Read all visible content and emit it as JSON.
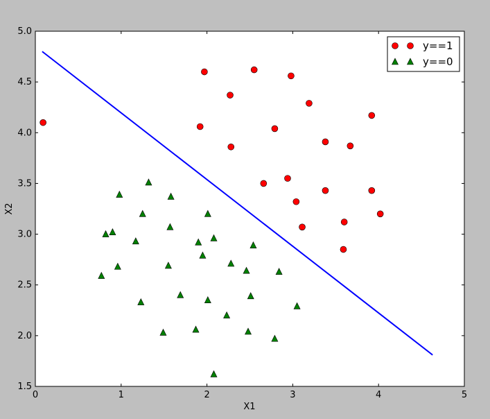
{
  "chart_data": {
    "type": "scatter",
    "xlabel": "X1",
    "ylabel": "X2",
    "xlim": [
      0,
      5
    ],
    "ylim": [
      1.5,
      5.0
    ],
    "xticks": [
      "0",
      "1",
      "2",
      "3",
      "4",
      "5"
    ],
    "yticks": [
      "1.5",
      "2.0",
      "2.5",
      "3.0",
      "3.5",
      "4.0",
      "4.5",
      "5.0"
    ],
    "grid": false,
    "legend_position": "top-right",
    "series": [
      {
        "name": "y==1",
        "marker": "circle",
        "color": "#ff0000",
        "points": [
          [
            0.09,
            4.1
          ],
          [
            1.97,
            4.6
          ],
          [
            2.55,
            4.62
          ],
          [
            2.98,
            4.56
          ],
          [
            2.27,
            4.37
          ],
          [
            3.19,
            4.29
          ],
          [
            1.92,
            4.06
          ],
          [
            2.79,
            4.04
          ],
          [
            3.92,
            4.17
          ],
          [
            3.38,
            3.91
          ],
          [
            3.67,
            3.87
          ],
          [
            2.28,
            3.86
          ],
          [
            2.66,
            3.5
          ],
          [
            2.94,
            3.55
          ],
          [
            3.38,
            3.43
          ],
          [
            3.92,
            3.43
          ],
          [
            3.04,
            3.32
          ],
          [
            4.02,
            3.2
          ],
          [
            3.6,
            3.12
          ],
          [
            3.11,
            3.07
          ],
          [
            3.59,
            2.85
          ]
        ]
      },
      {
        "name": "y==0",
        "marker": "triangle",
        "color": "#008000",
        "points": [
          [
            1.32,
            3.51
          ],
          [
            0.98,
            3.39
          ],
          [
            1.58,
            3.37
          ],
          [
            2.01,
            3.2
          ],
          [
            1.25,
            3.2
          ],
          [
            1.57,
            3.07
          ],
          [
            0.9,
            3.02
          ],
          [
            0.82,
            3.0
          ],
          [
            2.08,
            2.96
          ],
          [
            1.17,
            2.93
          ],
          [
            1.9,
            2.92
          ],
          [
            2.54,
            2.89
          ],
          [
            1.95,
            2.79
          ],
          [
            2.28,
            2.71
          ],
          [
            0.96,
            2.68
          ],
          [
            1.55,
            2.69
          ],
          [
            2.46,
            2.64
          ],
          [
            2.84,
            2.63
          ],
          [
            0.77,
            2.59
          ],
          [
            1.69,
            2.4
          ],
          [
            2.51,
            2.39
          ],
          [
            2.01,
            2.35
          ],
          [
            1.23,
            2.33
          ],
          [
            3.05,
            2.29
          ],
          [
            2.23,
            2.2
          ],
          [
            1.87,
            2.06
          ],
          [
            1.49,
            2.03
          ],
          [
            2.48,
            2.04
          ],
          [
            2.79,
            1.97
          ],
          [
            2.08,
            1.62
          ]
        ]
      }
    ],
    "line": {
      "color": "#0000ff",
      "points": [
        [
          0.08,
          4.8
        ],
        [
          4.63,
          1.81
        ]
      ]
    }
  }
}
